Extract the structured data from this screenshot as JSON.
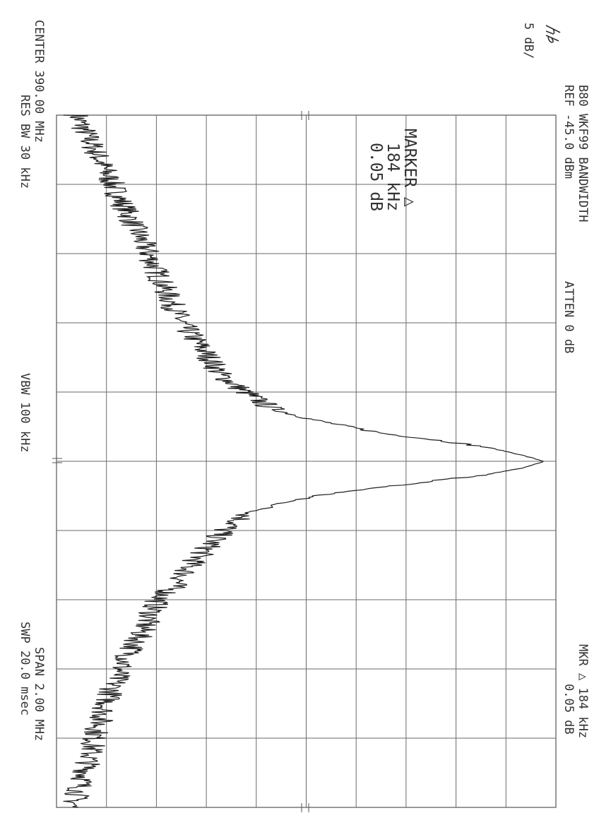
{
  "instrument": {
    "logo": "hp",
    "title": "B80 WKF99 BANDWIDTH",
    "ref_level": "REF -45.0 dBm",
    "atten": "ATTEN 0 dB",
    "scale": "5 dB/",
    "marker_readout_line1": "MKR △ 184 kHz",
    "marker_readout_line2": "0.05 dB",
    "marker_box": {
      "line1": "MARKER △",
      "line2": "184 kHz",
      "line3": "0.05 dB"
    },
    "center": "CENTER 390.00 MHz",
    "res_bw": "RES BW 30 kHz",
    "vbw": "VBW 100 kHz",
    "span": "SPAN 2.00 MHz",
    "sweep": "SWP 20.0 msec"
  },
  "chart_data": {
    "type": "line",
    "title": "B80 WKF99 BANDWIDTH",
    "xlabel": "",
    "ylabel": "",
    "x_unit": "MHz",
    "y_unit": "dBm",
    "xlim": [
      389.0,
      391.0
    ],
    "ylim": [
      -95.0,
      -45.0
    ],
    "grid": true,
    "x_divisions": 10,
    "y_divisions": 10,
    "series": [
      {
        "x": [
          389.0,
          389.1,
          389.2,
          389.3,
          389.4,
          389.5,
          389.6,
          389.65,
          389.7,
          389.75,
          389.8,
          389.85,
          389.88,
          389.9,
          389.92,
          389.94,
          389.96,
          389.98,
          390.0,
          390.02,
          390.04,
          390.06,
          390.08,
          390.1,
          390.12,
          390.15,
          390.2,
          390.25,
          390.3,
          390.35,
          390.4,
          390.5,
          390.6,
          390.7,
          390.8,
          390.9,
          391.0
        ],
        "y": [
          -93.0,
          -91.2,
          -89.4,
          -87.6,
          -85.8,
          -84.2,
          -82.5,
          -81.1,
          -79.7,
          -78.6,
          -76.1,
          -73.3,
          -69.3,
          -65.8,
          -62.2,
          -56.6,
          -51.8,
          -48.7,
          -46.2,
          -48.5,
          -52.3,
          -58.1,
          -64.0,
          -69.1,
          -72.3,
          -75.7,
          -78.3,
          -79.9,
          -81.6,
          -82.8,
          -84.8,
          -86.6,
          -88.6,
          -90.0,
          -91.2,
          -92.1,
          -93.4
        ]
      }
    ]
  }
}
